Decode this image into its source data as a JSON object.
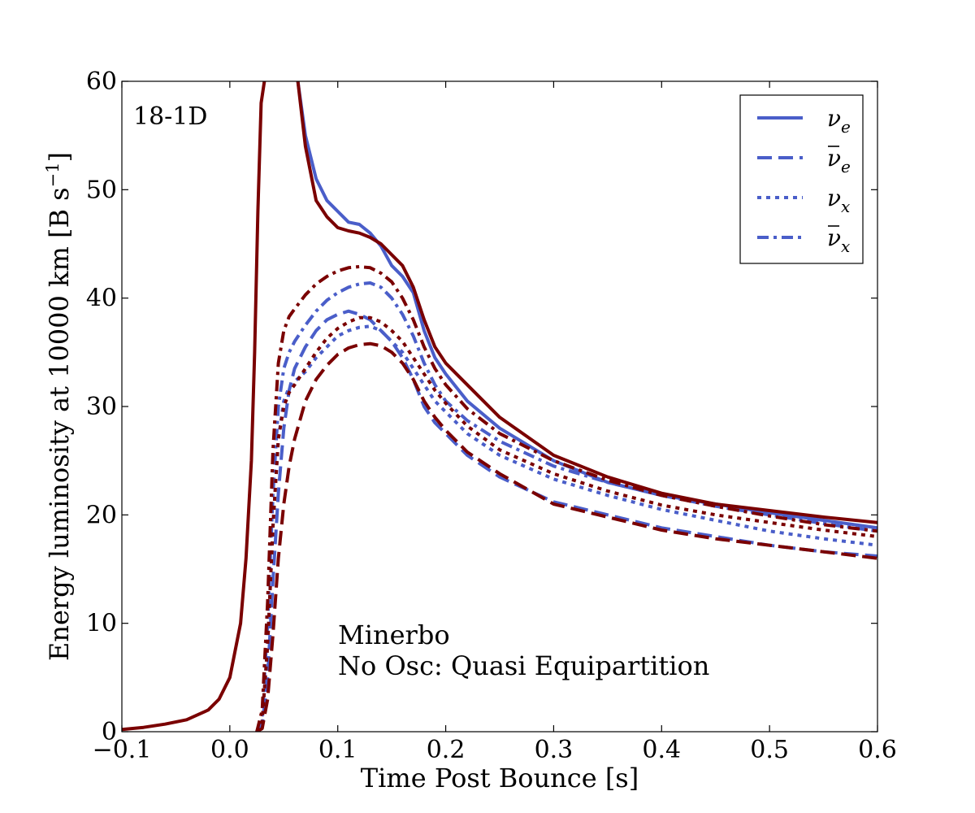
{
  "chart_data": {
    "type": "line",
    "panel_label": "18-1D",
    "xlabel": "Time Post Bounce [s]",
    "ylabel": "Energy luminosity at 10000 km [B s",
    "ylabel_sup": "−1",
    "ylabel_end": "]",
    "xlim": [
      -0.1,
      0.6
    ],
    "ylim": [
      0,
      60
    ],
    "x_ticks": [
      -0.1,
      0.0,
      0.1,
      0.2,
      0.3,
      0.4,
      0.5,
      0.6
    ],
    "x_tick_labels": [
      "−0.1",
      "0.0",
      "0.1",
      "0.2",
      "0.3",
      "0.4",
      "0.5",
      "0.6"
    ],
    "y_ticks": [
      0,
      10,
      20,
      30,
      40,
      50,
      60
    ],
    "y_tick_labels": [
      "0",
      "10",
      "20",
      "30",
      "40",
      "50",
      "60"
    ],
    "grid": false,
    "legend_position": "top-right",
    "legend": [
      {
        "base": "ν",
        "bar": false,
        "sub": "e",
        "style": "solid"
      },
      {
        "base": "ν",
        "bar": true,
        "sub": "e",
        "style": "dashed"
      },
      {
        "base": "ν",
        "bar": false,
        "sub": "x",
        "style": "dotted"
      },
      {
        "base": "ν",
        "bar": true,
        "sub": "x",
        "style": "dashdot"
      }
    ],
    "annotations": [
      {
        "text": "Minerbo",
        "color": "#4a5ec9"
      },
      {
        "text": "No Osc: Quasi Equipartition",
        "color": "#7a0000"
      }
    ],
    "colors": {
      "minerbo": "#4a5ec9",
      "noosc": "#7a0000"
    },
    "series": [
      {
        "group": "minerbo",
        "style": "solid",
        "x": [
          0.063,
          0.07,
          0.08,
          0.09,
          0.1,
          0.11,
          0.12,
          0.13,
          0.14,
          0.15,
          0.16,
          0.17,
          0.18,
          0.19,
          0.2,
          0.22,
          0.25,
          0.3,
          0.35,
          0.4,
          0.45,
          0.5,
          0.55,
          0.6
        ],
        "y": [
          60,
          55.0,
          51.0,
          49.0,
          48.0,
          47.0,
          46.8,
          46.0,
          44.8,
          43.0,
          42.0,
          40.5,
          37.0,
          34.5,
          33.0,
          30.5,
          28.0,
          25.0,
          23.0,
          21.8,
          21.0,
          20.2,
          19.5,
          18.8
        ]
      },
      {
        "group": "minerbo",
        "style": "dashed",
        "x": [
          0.025,
          0.03,
          0.035,
          0.04,
          0.045,
          0.05,
          0.055,
          0.06,
          0.07,
          0.08,
          0.09,
          0.1,
          0.11,
          0.12,
          0.13,
          0.14,
          0.15,
          0.16,
          0.17,
          0.18,
          0.19,
          0.2,
          0.22,
          0.25,
          0.3,
          0.35,
          0.4,
          0.45,
          0.5,
          0.55,
          0.6
        ],
        "y": [
          0,
          0.5,
          5,
          14,
          22,
          28,
          31.5,
          33.5,
          35.5,
          37.0,
          38.0,
          38.5,
          38.8,
          38.5,
          38.0,
          37.0,
          36.0,
          34.5,
          32.5,
          30.0,
          28.5,
          27.5,
          25.5,
          23.5,
          21.2,
          20.0,
          18.8,
          18.0,
          17.2,
          16.6,
          16.2
        ]
      },
      {
        "group": "minerbo",
        "style": "dotted",
        "x": [
          0.025,
          0.03,
          0.035,
          0.04,
          0.045,
          0.05,
          0.055,
          0.06,
          0.07,
          0.08,
          0.09,
          0.1,
          0.11,
          0.12,
          0.13,
          0.14,
          0.15,
          0.16,
          0.17,
          0.18,
          0.19,
          0.2,
          0.22,
          0.25,
          0.3,
          0.35,
          0.4,
          0.45,
          0.5,
          0.55,
          0.6
        ],
        "y": [
          0,
          1,
          8,
          19,
          27,
          30.5,
          31.8,
          32.3,
          33.2,
          34.5,
          35.5,
          36.5,
          37.0,
          37.3,
          37.4,
          37.0,
          36.0,
          35.0,
          33.5,
          32.0,
          30.5,
          29.5,
          27.5,
          25.5,
          23.3,
          21.8,
          20.5,
          19.5,
          18.5,
          17.8,
          17.2
        ]
      },
      {
        "group": "minerbo",
        "style": "dashdot",
        "x": [
          0.025,
          0.03,
          0.035,
          0.04,
          0.045,
          0.05,
          0.055,
          0.06,
          0.07,
          0.08,
          0.09,
          0.1,
          0.11,
          0.12,
          0.13,
          0.14,
          0.15,
          0.16,
          0.17,
          0.18,
          0.19,
          0.2,
          0.22,
          0.25,
          0.3,
          0.35,
          0.4,
          0.45,
          0.5,
          0.55,
          0.6
        ],
        "y": [
          0,
          1.5,
          10,
          22,
          30,
          33.5,
          35.0,
          36.0,
          37.5,
          38.8,
          39.8,
          40.5,
          41.0,
          41.3,
          41.4,
          41.0,
          40.0,
          38.5,
          36.5,
          34.0,
          32.0,
          30.5,
          28.7,
          26.8,
          24.5,
          23.0,
          21.8,
          20.8,
          20.0,
          19.2,
          18.5
        ]
      },
      {
        "group": "noosc",
        "style": "solid",
        "x": [
          -0.1,
          -0.08,
          -0.06,
          -0.04,
          -0.02,
          -0.01,
          0.0,
          0.01,
          0.015,
          0.02,
          0.023,
          0.026,
          0.029,
          0.032
        ],
        "y": [
          0.2,
          0.4,
          0.7,
          1.1,
          2.0,
          3.0,
          5.0,
          10,
          16,
          25,
          35,
          48,
          58,
          60
        ]
      },
      {
        "group": "noosc",
        "style": "solid",
        "x": [
          0.063,
          0.07,
          0.08,
          0.09,
          0.1,
          0.11,
          0.12,
          0.13,
          0.14,
          0.15,
          0.16,
          0.17,
          0.18,
          0.19,
          0.2,
          0.22,
          0.25,
          0.3,
          0.35,
          0.4,
          0.45,
          0.5,
          0.55,
          0.6
        ],
        "y": [
          60,
          54.0,
          49.0,
          47.5,
          46.5,
          46.2,
          46.0,
          45.6,
          45.0,
          44.0,
          43.0,
          41.0,
          38.0,
          35.5,
          34.0,
          32.0,
          29.0,
          25.5,
          23.5,
          22.0,
          21.0,
          20.4,
          19.8,
          19.3
        ]
      },
      {
        "group": "noosc",
        "style": "dashed",
        "x": [
          0.025,
          0.03,
          0.035,
          0.04,
          0.045,
          0.05,
          0.055,
          0.06,
          0.07,
          0.08,
          0.09,
          0.1,
          0.11,
          0.12,
          0.13,
          0.14,
          0.15,
          0.16,
          0.17,
          0.18,
          0.19,
          0.2,
          0.22,
          0.25,
          0.3,
          0.35,
          0.4,
          0.45,
          0.5,
          0.55,
          0.6
        ],
        "y": [
          0,
          0.3,
          3,
          9,
          16,
          21,
          24.5,
          27.0,
          30.5,
          32.5,
          33.8,
          34.8,
          35.4,
          35.7,
          35.8,
          35.6,
          35.0,
          34.0,
          32.5,
          30.5,
          29.0,
          27.8,
          25.8,
          23.8,
          21.0,
          19.8,
          18.6,
          17.8,
          17.2,
          16.6,
          16.0
        ]
      },
      {
        "group": "noosc",
        "style": "dotted",
        "x": [
          0.025,
          0.03,
          0.035,
          0.04,
          0.045,
          0.05,
          0.055,
          0.06,
          0.07,
          0.08,
          0.09,
          0.1,
          0.11,
          0.12,
          0.13,
          0.14,
          0.15,
          0.16,
          0.17,
          0.18,
          0.19,
          0.2,
          0.22,
          0.25,
          0.3,
          0.35,
          0.4,
          0.45,
          0.5,
          0.55,
          0.6
        ],
        "y": [
          0,
          1,
          8,
          19,
          27,
          30.0,
          31.3,
          32.0,
          33.5,
          35.0,
          36.3,
          37.2,
          37.8,
          38.2,
          38.2,
          37.8,
          37.0,
          36.0,
          34.5,
          33.0,
          31.5,
          30.3,
          28.2,
          26.0,
          23.8,
          22.2,
          20.9,
          20.0,
          19.3,
          18.6,
          18.0
        ]
      },
      {
        "group": "noosc",
        "style": "dashdot",
        "x": [
          0.025,
          0.03,
          0.035,
          0.04,
          0.045,
          0.05,
          0.055,
          0.06,
          0.07,
          0.08,
          0.09,
          0.1,
          0.11,
          0.12,
          0.13,
          0.14,
          0.15,
          0.16,
          0.17,
          0.18,
          0.19,
          0.2,
          0.22,
          0.25,
          0.3,
          0.35,
          0.4,
          0.45,
          0.5,
          0.55,
          0.6
        ],
        "y": [
          0,
          2,
          12,
          26,
          34,
          37.0,
          38.3,
          39.0,
          40.3,
          41.3,
          42.0,
          42.5,
          42.8,
          42.9,
          42.8,
          42.3,
          41.5,
          40.0,
          38.0,
          35.5,
          33.5,
          32.0,
          29.8,
          27.5,
          25.0,
          23.2,
          21.8,
          20.8,
          19.9,
          19.1,
          18.5
        ]
      }
    ]
  }
}
